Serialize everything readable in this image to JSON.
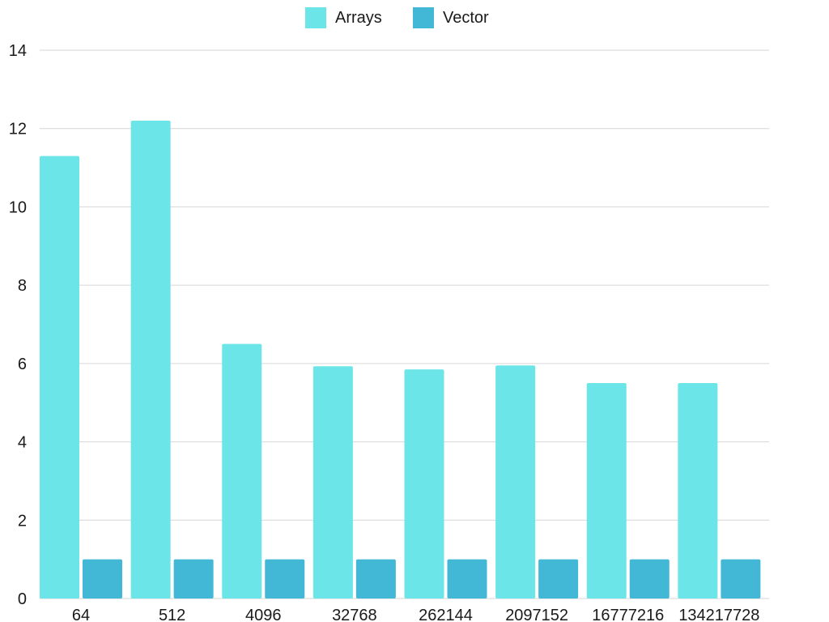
{
  "chart_data": {
    "type": "bar",
    "categories": [
      "64",
      "512",
      "4096",
      "32768",
      "262144",
      "2097152",
      "16777216",
      "134217728"
    ],
    "series": [
      {
        "name": "Arrays",
        "values": [
          11.3,
          12.2,
          6.5,
          5.93,
          5.85,
          5.95,
          5.5,
          5.5
        ]
      },
      {
        "name": "Vector",
        "values": [
          1,
          1,
          1,
          1,
          1,
          1,
          1,
          1
        ]
      }
    ],
    "ylim": [
      0,
      14
    ],
    "yticks": [
      "0",
      "2",
      "4",
      "6",
      "8",
      "10",
      "12",
      "14"
    ],
    "grid": true,
    "legend_position": "top-center",
    "colors": {
      "Arrays": "#6be5e8",
      "Vector": "#43b8d6",
      "grid": "#d6d6d6"
    }
  }
}
